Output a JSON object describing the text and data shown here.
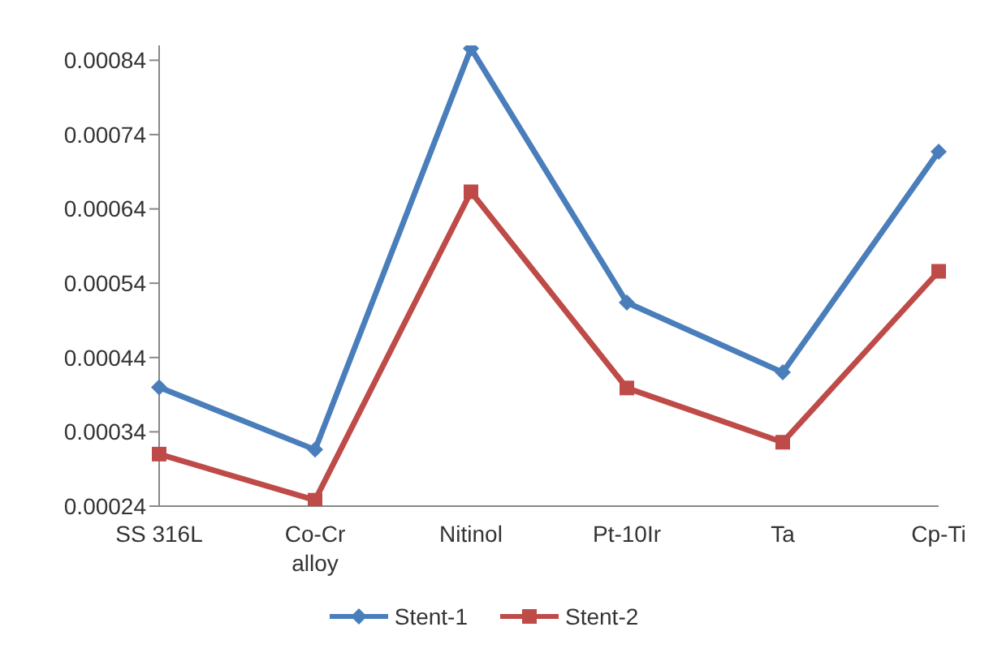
{
  "chart_data": {
    "type": "line",
    "categories": [
      "SS 316L",
      "Co-Cr alloy",
      "Nitinol",
      "Pt-10Ir",
      "Ta",
      "Cp-Ti"
    ],
    "series": [
      {
        "name": "Stent-1",
        "color": "#4a7ebb",
        "marker": "diamond",
        "values": [
          0.0004,
          0.000316,
          0.000856,
          0.000514,
          0.00042,
          0.000717
        ]
      },
      {
        "name": "Stent-2",
        "color": "#be4b48",
        "marker": "square",
        "values": [
          0.00031,
          0.000248,
          0.000663,
          0.000399,
          0.000326,
          0.000556
        ]
      }
    ],
    "ylim": [
      0.00024,
      0.00086
    ],
    "yticks": [
      0.00024,
      0.00034,
      0.00044,
      0.00054,
      0.00064,
      0.00074,
      0.00084
    ],
    "grid": false,
    "legend": "bottom"
  }
}
